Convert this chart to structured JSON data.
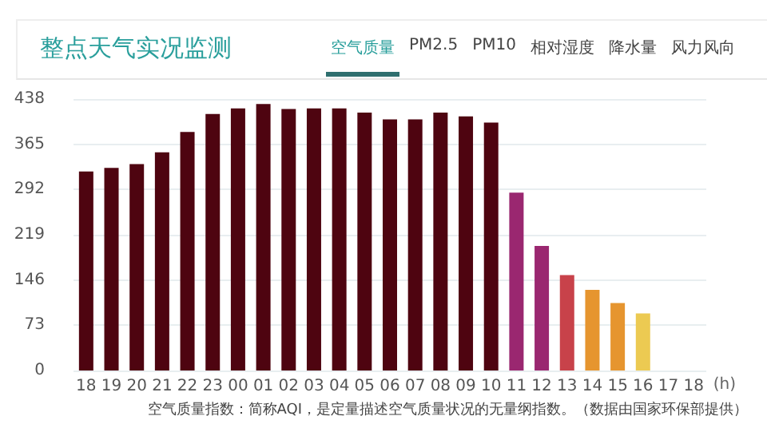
{
  "chart_data": {
    "type": "bar",
    "title": "整点天气实况监测",
    "annotations": [
      "空气质量",
      "PM2.5",
      "PM10",
      "相对湿度",
      "降水量",
      "风力风向",
      "空气质量指数：简称AQI，是定量描述空气质量状况的无量纲指数。（数据由国家环保部提供）"
    ],
    "xlabel": "(h)",
    "categories": [
      "18",
      "19",
      "20",
      "21",
      "22",
      "23",
      "00",
      "01",
      "02",
      "03",
      "04",
      "05",
      "06",
      "07",
      "08",
      "09",
      "10",
      "11",
      "12",
      "13",
      "14",
      "15",
      "16",
      "17",
      "18"
    ],
    "values": [
      321,
      327,
      333,
      352,
      385,
      414,
      423,
      430,
      422,
      423,
      423,
      416,
      405,
      405,
      416,
      410,
      400,
      287,
      201,
      154,
      130,
      109,
      92,
      null,
      null
    ],
    "colors": [
      "#4e0410",
      "#4e0410",
      "#4e0410",
      "#4e0410",
      "#4e0410",
      "#4e0410",
      "#4e0410",
      "#4e0410",
      "#4e0410",
      "#4e0410",
      "#4e0410",
      "#4e0410",
      "#4e0410",
      "#4e0410",
      "#4e0410",
      "#4e0410",
      "#4e0410",
      "#9a2770",
      "#9a2770",
      "#c8424a",
      "#e6952f",
      "#e6952f",
      "#ecca52",
      "#ecca52",
      "#ecca52"
    ],
    "ylim": [
      0,
      438
    ],
    "yticks": [
      0,
      73,
      146,
      219,
      292,
      365,
      438
    ],
    "grid": "y"
  }
}
